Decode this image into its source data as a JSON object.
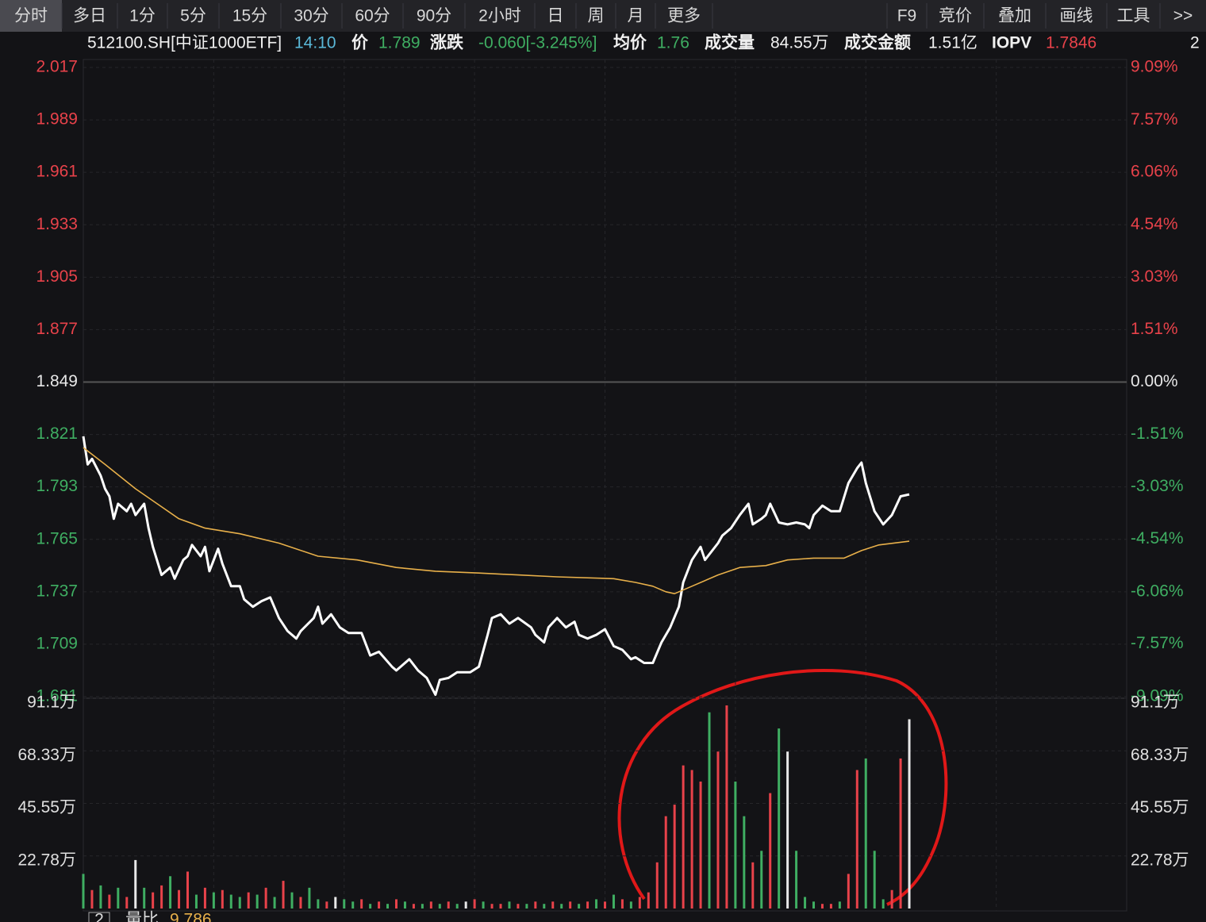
{
  "toolbar": {
    "left": [
      "分时",
      "多日",
      "1分",
      "5分",
      "15分",
      "30分",
      "60分",
      "90分",
      "2小时",
      "日",
      "周",
      "月",
      "更多"
    ],
    "right": [
      "F9",
      "竞价",
      "叠加",
      "画线",
      "工具",
      ">>"
    ]
  },
  "info": [
    "512100.SH[中证1000ETF]",
    "14:10",
    "价",
    "1.789",
    "涨跌",
    "-0.060[-3.245%]",
    "均价",
    "1.76",
    "成交量",
    "84.55万",
    "成交金额",
    "1.51亿",
    "IOPV",
    "1.7846",
    "2"
  ],
  "footer": [
    "2",
    "量比",
    "9.786"
  ],
  "chart_data": [
    {
      "type": "line",
      "xlim": [
        0,
        240
      ],
      "ylim": [
        1.681,
        2.017
      ],
      "yticks": [
        2.017,
        1.989,
        1.961,
        1.933,
        1.905,
        1.877,
        1.849,
        1.821,
        1.793,
        1.765,
        1.737,
        1.709,
        1.681
      ],
      "y2lim": [
        -9.09,
        9.09
      ],
      "y2ticks": [
        {
          "value": 9.09,
          "label": "9.09%"
        },
        {
          "value": 7.57,
          "label": "7.57%"
        },
        {
          "value": 6.06,
          "label": "6.06%"
        },
        {
          "value": 4.54,
          "label": "4.54%"
        },
        {
          "value": 3.03,
          "label": "3.03%"
        },
        {
          "value": 1.51,
          "label": "1.51%"
        },
        {
          "value": 0,
          "label": "0.00%"
        },
        {
          "value": -1.51,
          "label": "-1.51%"
        },
        {
          "value": -3.03,
          "label": "-3.03%"
        },
        {
          "value": -4.54,
          "label": "-4.54%"
        },
        {
          "value": -6.06,
          "label": "-6.06%"
        },
        {
          "value": -7.57,
          "label": "-7.57%"
        },
        {
          "value": -9.09,
          "label": "-9.09%"
        }
      ],
      "up_color": "#e8424a",
      "down_color": "#3fae62",
      "flat_color": "#e8e8e8",
      "grid": true,
      "series": [
        {
          "color": "#ffffff",
          "x": [
            0,
            1,
            2,
            4,
            5,
            6,
            7,
            8,
            10,
            11,
            12,
            14,
            15,
            16,
            18,
            20,
            21,
            23,
            24,
            25,
            27,
            28,
            29,
            31,
            32,
            34,
            36,
            37,
            39,
            41,
            43,
            45,
            47,
            49,
            50,
            53,
            54,
            55,
            57,
            59,
            61,
            64,
            66,
            68,
            71,
            72,
            75,
            77,
            79,
            81,
            82,
            84,
            86,
            89,
            91,
            93,
            94,
            96,
            98,
            100,
            103,
            104,
            106,
            107,
            109,
            111,
            113,
            114,
            116,
            118,
            120,
            122,
            124,
            126,
            127,
            129,
            131,
            133,
            135,
            137,
            138,
            140,
            142,
            143,
            146,
            147,
            149,
            151,
            153,
            154,
            156,
            157,
            158,
            160,
            162,
            164,
            166,
            167,
            168,
            170,
            172,
            174,
            176,
            178,
            179,
            180,
            182,
            184,
            186,
            188,
            190
          ],
          "values": [
            1.82,
            1.805,
            1.808,
            1.799,
            1.792,
            1.788,
            1.776,
            1.784,
            1.78,
            1.784,
            1.778,
            1.784,
            1.771,
            1.761,
            1.746,
            1.75,
            1.744,
            1.754,
            1.756,
            1.762,
            1.756,
            1.761,
            1.748,
            1.76,
            1.752,
            1.74,
            1.74,
            1.733,
            1.729,
            1.732,
            1.734,
            1.723,
            1.716,
            1.712,
            1.716,
            1.723,
            1.729,
            1.72,
            1.725,
            1.718,
            1.715,
            1.715,
            1.703,
            1.705,
            1.697,
            1.695,
            1.701,
            1.695,
            1.691,
            1.682,
            1.69,
            1.691,
            1.694,
            1.694,
            1.697,
            1.714,
            1.723,
            1.725,
            1.72,
            1.723,
            1.718,
            1.714,
            1.71,
            1.718,
            1.723,
            1.718,
            1.721,
            1.714,
            1.712,
            1.714,
            1.717,
            1.708,
            1.706,
            1.701,
            1.702,
            1.699,
            1.699,
            1.71,
            1.718,
            1.729,
            1.742,
            1.754,
            1.761,
            1.754,
            1.763,
            1.767,
            1.771,
            1.778,
            1.784,
            1.773,
            1.776,
            1.778,
            1.784,
            1.774,
            1.773,
            1.774,
            1.773,
            1.771,
            1.778,
            1.783,
            1.78,
            1.78,
            1.795,
            1.803,
            1.806,
            1.795,
            1.78,
            1.773,
            1.778,
            1.788,
            1.789
          ]
        },
        {
          "color": "#e8b04a",
          "x": [
            0,
            5,
            12,
            17,
            22,
            28,
            36,
            45,
            54,
            63,
            72,
            81,
            91,
            100,
            109,
            122,
            127,
            131,
            134,
            136,
            140,
            146,
            151,
            157,
            162,
            168,
            175,
            179,
            183,
            190
          ],
          "values": [
            1.814,
            1.805,
            1.792,
            1.784,
            1.776,
            1.771,
            1.768,
            1.763,
            1.756,
            1.754,
            1.75,
            1.748,
            1.747,
            1.746,
            1.745,
            1.744,
            1.742,
            1.74,
            1.737,
            1.736,
            1.74,
            1.746,
            1.75,
            1.751,
            1.754,
            1.755,
            1.755,
            1.759,
            1.762,
            1.764
          ]
        }
      ]
    },
    {
      "type": "bar",
      "xlim": [
        0,
        240
      ],
      "ylim": [
        0,
        91.1
      ],
      "yticks": [
        {
          "value": 91.1,
          "label": "91.1万"
        },
        {
          "value": 68.33,
          "label": "68.33万"
        },
        {
          "value": 45.55,
          "label": "45.55万"
        },
        {
          "value": 22.78,
          "label": "22.78万"
        }
      ],
      "x": [
        0,
        2,
        4,
        6,
        8,
        10,
        12,
        14,
        16,
        18,
        20,
        22,
        24,
        26,
        28,
        30,
        32,
        34,
        36,
        38,
        40,
        42,
        44,
        46,
        48,
        50,
        52,
        54,
        56,
        58,
        60,
        62,
        64,
        66,
        68,
        70,
        72,
        74,
        76,
        78,
        80,
        82,
        84,
        86,
        88,
        90,
        92,
        94,
        96,
        98,
        100,
        102,
        104,
        106,
        108,
        110,
        112,
        114,
        116,
        118,
        120,
        122,
        124,
        126,
        128,
        130,
        132,
        134,
        136,
        138,
        140,
        142,
        144,
        146,
        148,
        150,
        152,
        154,
        156,
        158,
        160,
        162,
        164,
        166,
        168,
        170,
        172,
        174,
        176,
        178,
        180,
        182,
        184,
        186,
        188,
        190
      ],
      "values": [
        15,
        8,
        10,
        6,
        9,
        5,
        21,
        9,
        7,
        10,
        14,
        8,
        16,
        6,
        9,
        7,
        8,
        6,
        5,
        7,
        6,
        9,
        5,
        12,
        7,
        5,
        9,
        4,
        3,
        5,
        4,
        3,
        4,
        2,
        3,
        2,
        4,
        3,
        2,
        2,
        3,
        2,
        3,
        2,
        3,
        4,
        3,
        2,
        2,
        3,
        2,
        2,
        3,
        2,
        3,
        2,
        3,
        2,
        3,
        4,
        3,
        6,
        4,
        3,
        5,
        7,
        20,
        40,
        45,
        62,
        60,
        55,
        85,
        68,
        88,
        55,
        40,
        20,
        25,
        50,
        78,
        68,
        25,
        5,
        3,
        2,
        2,
        3,
        15,
        60,
        65,
        25,
        4,
        8,
        65,
        82
      ],
      "colors": [
        "#3fae62",
        "#e8424a",
        "#3fae62",
        "#e8424a",
        "#3fae62",
        "#e8424a",
        "#e8e8e8",
        "#3fae62",
        "#e8424a",
        "#e8424a",
        "#3fae62",
        "#e8424a",
        "#e8424a",
        "#3fae62",
        "#e8424a",
        "#3fae62",
        "#e8424a",
        "#3fae62",
        "#3fae62",
        "#e8424a",
        "#3fae62",
        "#e8424a",
        "#3fae62",
        "#e8424a",
        "#3fae62",
        "#e8424a",
        "#3fae62",
        "#3fae62",
        "#e8424a",
        "#e8e8e8",
        "#3fae62",
        "#3fae62",
        "#e8424a",
        "#3fae62",
        "#e8424a",
        "#3fae62",
        "#e8424a",
        "#3fae62",
        "#e8424a",
        "#3fae62",
        "#e8424a",
        "#3fae62",
        "#e8424a",
        "#3fae62",
        "#e8e8e8",
        "#e8424a",
        "#3fae62",
        "#e8424a",
        "#e8424a",
        "#3fae62",
        "#e8424a",
        "#3fae62",
        "#e8424a",
        "#3fae62",
        "#e8424a",
        "#3fae62",
        "#e8424a",
        "#3fae62",
        "#e8424a",
        "#3fae62",
        "#e8424a",
        "#3fae62",
        "#e8424a",
        "#3fae62",
        "#e8424a",
        "#e8424a",
        "#e8424a",
        "#e8424a",
        "#e8424a",
        "#e8424a",
        "#e8424a",
        "#e8424a",
        "#3fae62",
        "#e8424a",
        "#e8424a",
        "#3fae62",
        "#3fae62",
        "#e8424a",
        "#3fae62",
        "#e8424a",
        "#3fae62",
        "#e8e8e8",
        "#3fae62",
        "#3fae62",
        "#3fae62",
        "#e8424a",
        "#e8424a",
        "#3fae62",
        "#e8424a",
        "#e8424a",
        "#3fae62",
        "#3fae62",
        "#3fae62",
        "#e8424a",
        "#e8424a",
        "#e8e8e8"
      ]
    }
  ]
}
